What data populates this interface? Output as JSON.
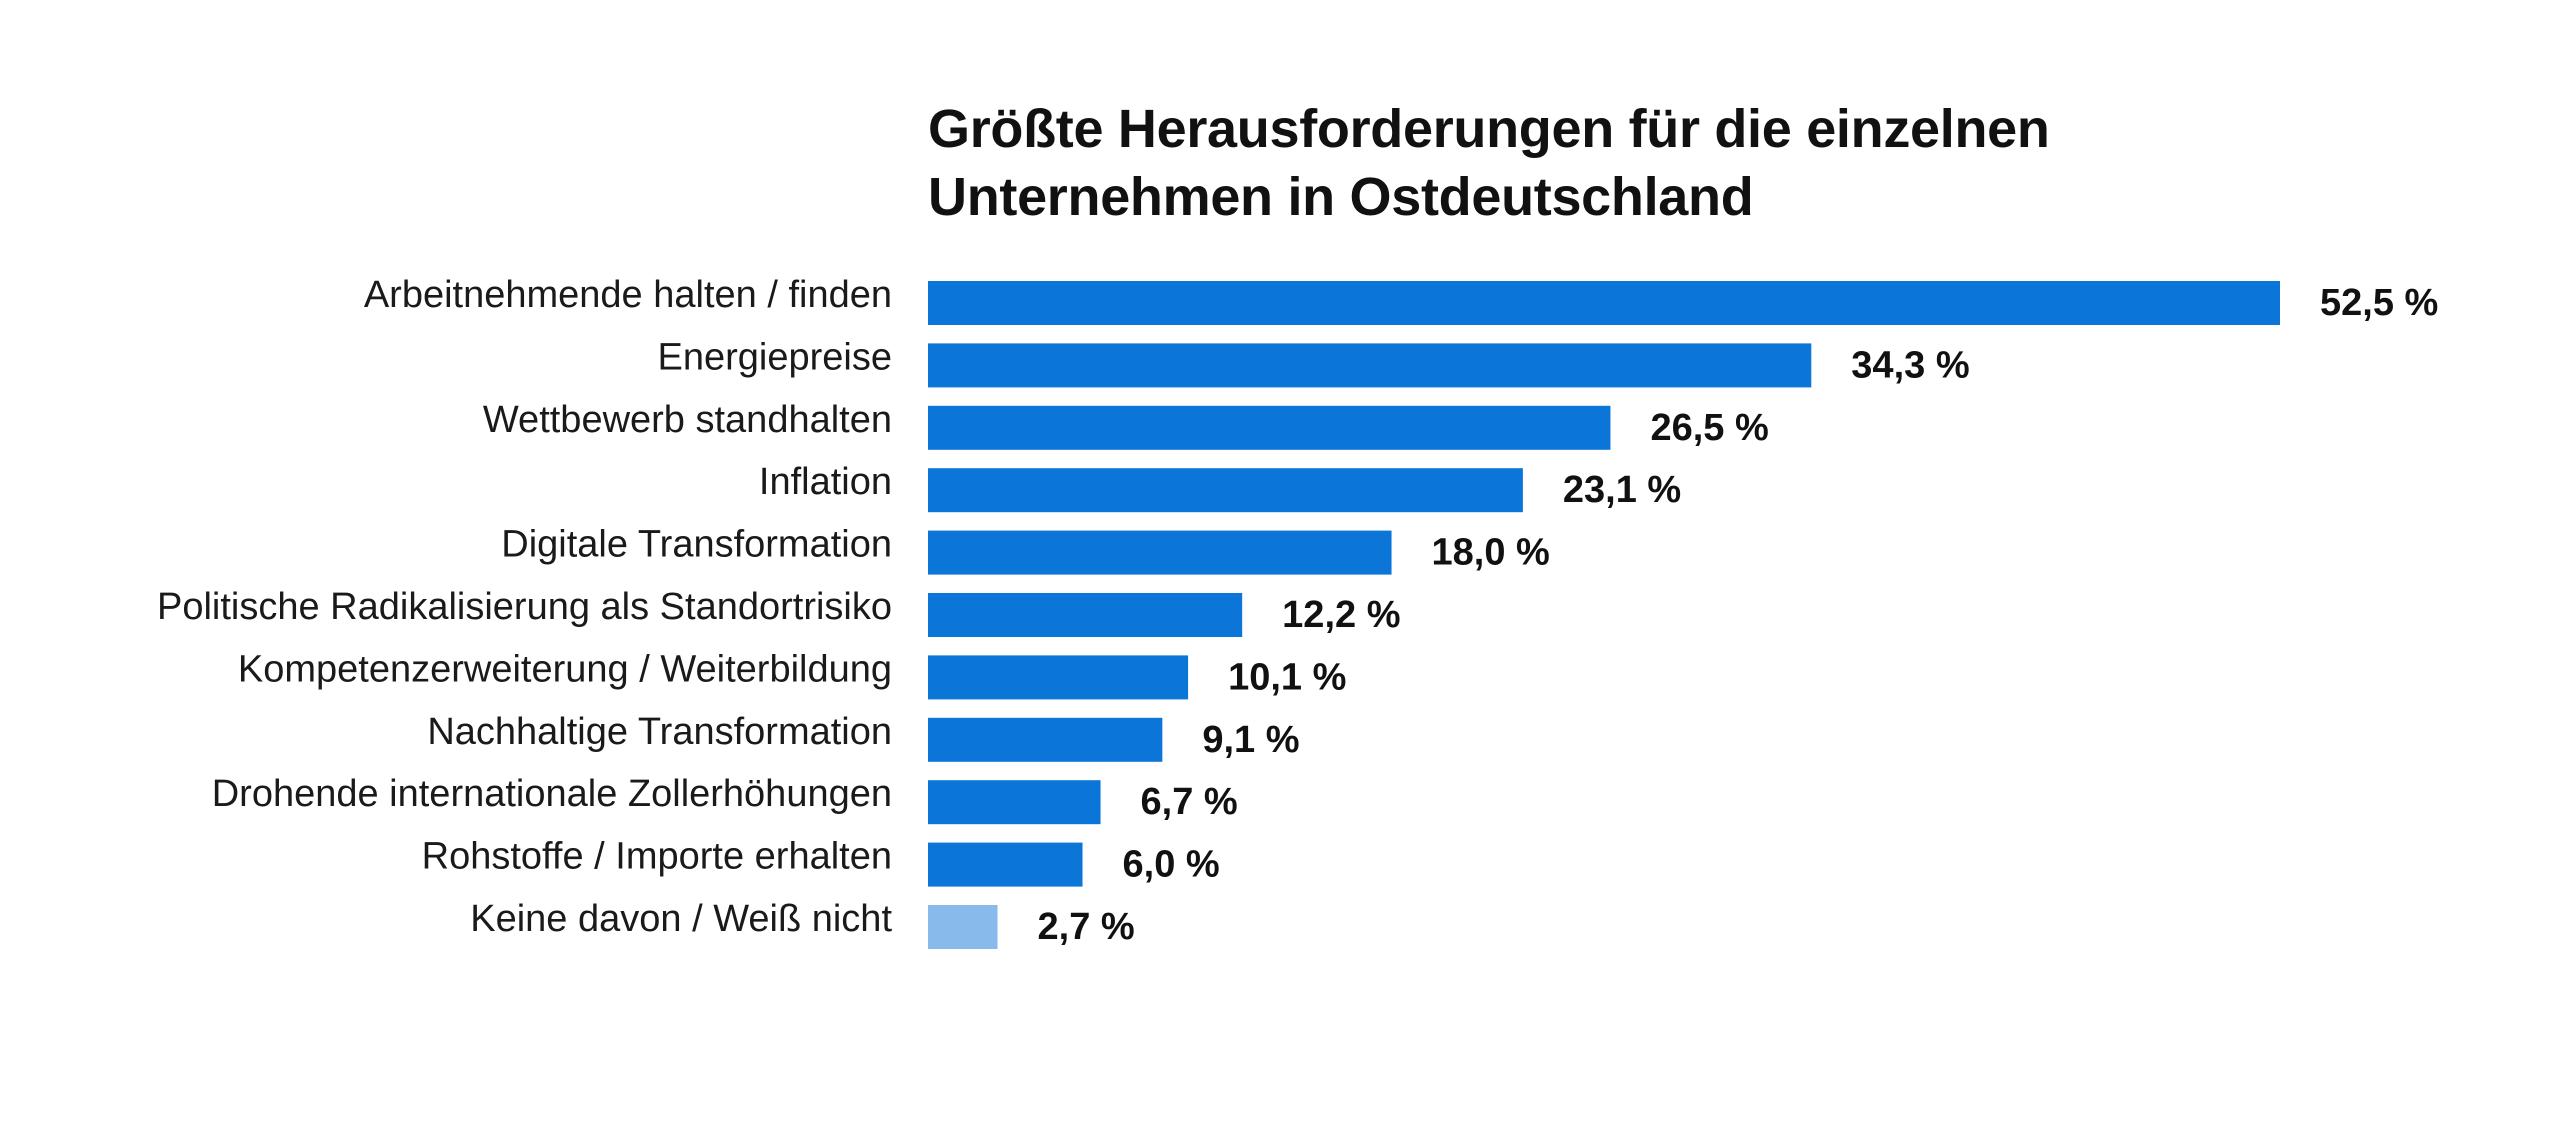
{
  "chart_data": {
    "type": "bar",
    "orientation": "horizontal",
    "title_lines": [
      "Größte Herausforderungen für die einzelnen",
      "Unternehmen in Ostdeutschland"
    ],
    "categories": [
      "Arbeitnehmende halten / finden",
      "Energiepreise",
      "Wettbewerb standhalten",
      "Inflation",
      "Digitale Transformation",
      "Politische Radikalisierung als Standortrisiko",
      "Kompetenzerweiterung / Weiterbildung",
      "Nachhaltige Transformation",
      "Drohende internationale Zollerhöhungen",
      "Rohstoffe / Importe erhalten",
      "Keine davon / Weiß nicht"
    ],
    "values": [
      52.5,
      34.3,
      26.5,
      23.1,
      18.0,
      12.2,
      10.1,
      9.1,
      6.7,
      6.0,
      2.7
    ],
    "value_labels": [
      "52,5 %",
      "34,3 %",
      "26,5 %",
      "23,1 %",
      "18,0 %",
      "12,2 %",
      "10,1 %",
      "9,1 %",
      "6,7 %",
      "6,0 %",
      "2,7 %"
    ],
    "unit": "%",
    "colors": {
      "bar": "#0b76d8",
      "bar_highlight_last": "#88bbec",
      "text": "#1a1a1a"
    },
    "xlim": [
      0,
      52.5
    ],
    "grid": false,
    "legend": "none"
  }
}
